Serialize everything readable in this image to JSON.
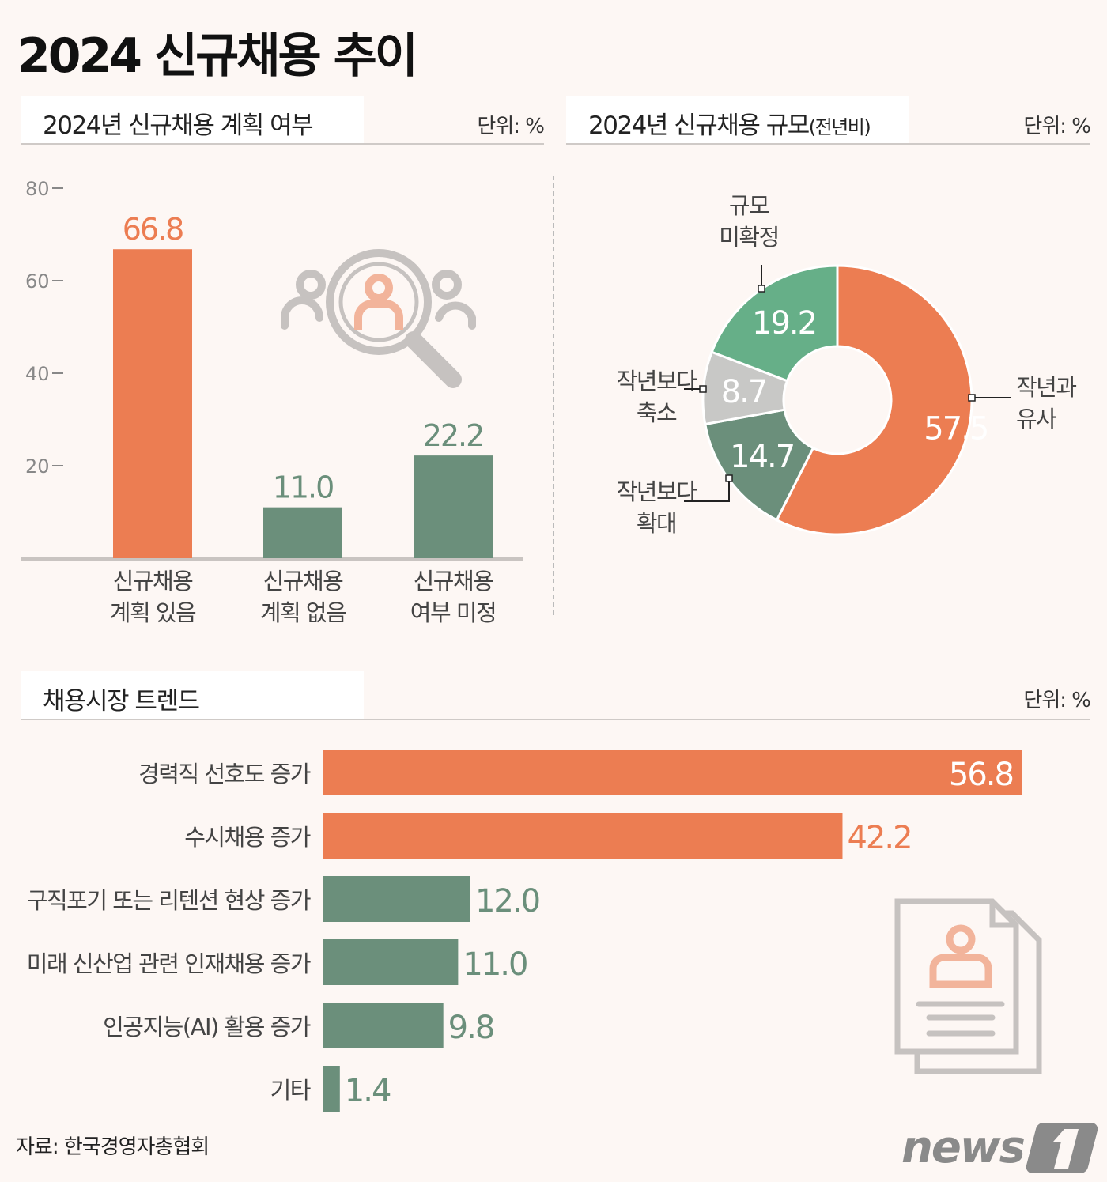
{
  "title": "2024 신규채용 추이",
  "source": "자료: 한국경영자총협회",
  "logo": "news1",
  "colors": {
    "orange": "#ec7d52",
    "dark_green": "#6b8f7b",
    "green": "#66af88",
    "gray": "#c8c8c6",
    "background": "#fdf7f4"
  },
  "icons": [
    "magnifier-people-icon",
    "resume-document-icon"
  ],
  "chart_data": [
    {
      "type": "bar",
      "title": "2024년 신규채용 계획 여부",
      "unit": "단위: %",
      "categories": [
        [
          "신규채용",
          "계획 있음"
        ],
        [
          "신규채용",
          "계획 없음"
        ],
        [
          "신규채용",
          "여부 미정"
        ]
      ],
      "values": [
        66.8,
        11.0,
        22.2
      ],
      "value_labels": [
        "66.8",
        "11.0",
        "22.2"
      ],
      "colors": [
        "#ec7d52",
        "#6b8f7b",
        "#6b8f7b"
      ],
      "yticks": [
        "80",
        "60",
        "40",
        "20"
      ],
      "ylim": [
        0,
        80
      ]
    },
    {
      "type": "pie",
      "donut": true,
      "title": "2024년 신규채용 규모",
      "title_suffix": "(전년비)",
      "unit": "단위: %",
      "slices": [
        {
          "label": [
            "작년과",
            "유사"
          ],
          "value": 57.5,
          "value_label": "57.5",
          "color": "#ec7d52"
        },
        {
          "label": [
            "작년보다",
            "확대"
          ],
          "value": 14.7,
          "value_label": "14.7",
          "color": "#6b8f7b"
        },
        {
          "label": [
            "작년보다",
            "축소"
          ],
          "value": 8.7,
          "value_label": "8.7",
          "color": "#c8c8c6"
        },
        {
          "label": [
            "규모",
            "미확정"
          ],
          "value": 19.2,
          "value_label": "19.2",
          "color": "#66af88"
        }
      ]
    },
    {
      "type": "bar",
      "orientation": "horizontal",
      "title": "채용시장 트렌드",
      "unit": "단위: %",
      "categories": [
        "경력직 선호도 증가",
        "수시채용 증가",
        "구직포기 또는 리텐션 현상 증가",
        "미래 신산업 관련 인재채용 증가",
        "인공지능(AI) 활용 증가",
        "기타"
      ],
      "values": [
        56.8,
        42.2,
        12.0,
        11.0,
        9.8,
        1.4
      ],
      "value_labels": [
        "56.8",
        "42.2",
        "12.0",
        "11.0",
        "9.8",
        "1.4"
      ],
      "colors": [
        "#ec7d52",
        "#ec7d52",
        "#6b8f7b",
        "#6b8f7b",
        "#6b8f7b",
        "#6b8f7b"
      ]
    }
  ]
}
